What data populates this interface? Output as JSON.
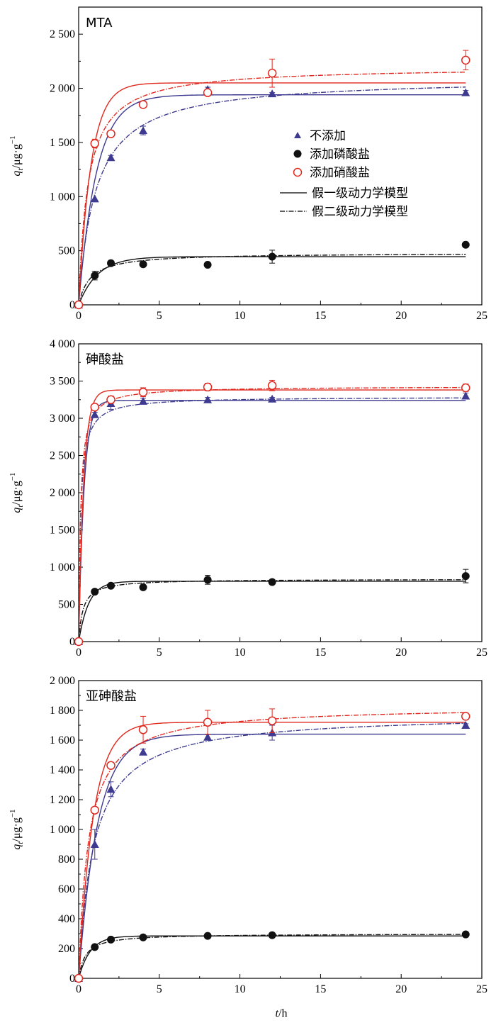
{
  "y_axis_label": "q",
  "y_axis_sub": "t",
  "y_axis_unit": "/μg·g",
  "y_axis_exp": "−1",
  "x_axis_label": "t",
  "x_axis_unit": "/h",
  "legend": {
    "none": "不添加",
    "phosphate": "添加磷酸盐",
    "nitrate": "添加硝酸盐",
    "pfo": "假一级动力学模型",
    "pso": "假二级动力学模型"
  },
  "colors": {
    "none": "#3d3a8f",
    "phosphate": "#111111",
    "nitrate": "#e0281e"
  },
  "chart_data": [
    {
      "type": "scatter",
      "panel_title": "MTA",
      "xlim": [
        0,
        25
      ],
      "ylim": [
        0,
        2750
      ],
      "xticks": [
        0,
        5,
        10,
        15,
        20,
        25
      ],
      "yticks": [
        0,
        500,
        1000,
        1500,
        2000,
        2500
      ],
      "ytick_labels": [
        "0",
        "500",
        "1 000",
        "1 500",
        "2 000",
        "2 500"
      ],
      "series": [
        {
          "name": "不添加",
          "key": "none",
          "marker": "triangle",
          "x": [
            0,
            1,
            2,
            4,
            8,
            12,
            24
          ],
          "y": [
            0,
            980,
            1360,
            1610,
            1990,
            1950,
            1960
          ],
          "err": [
            0,
            0,
            20,
            40,
            20,
            10,
            20
          ],
          "pfo": {
            "qe": 1940,
            "k": 0.9
          },
          "pso": {
            "qe": 2100,
            "k": 0.00045
          }
        },
        {
          "name": "添加磷酸盐",
          "key": "phosphate",
          "marker": "filled-circle",
          "x": [
            0,
            1,
            2,
            4,
            8,
            12,
            24
          ],
          "y": [
            0,
            270,
            385,
            375,
            370,
            445,
            555
          ],
          "err": [
            0,
            40,
            10,
            10,
            0,
            60,
            10
          ],
          "pfo": {
            "qe": 445,
            "k": 0.85
          },
          "pso": {
            "qe": 480,
            "k": 0.003
          }
        },
        {
          "name": "添加硝酸盐",
          "key": "nitrate",
          "marker": "open-circle",
          "x": [
            0,
            1,
            2,
            4,
            8,
            12,
            24
          ],
          "y": [
            0,
            1490,
            1580,
            1850,
            1960,
            2140,
            2260
          ],
          "err": [
            0,
            40,
            10,
            10,
            20,
            130,
            90
          ],
          "pfo": {
            "qe": 2050,
            "k": 1.3
          },
          "pso": {
            "qe": 2200,
            "k": 0.0008
          }
        }
      ]
    },
    {
      "type": "scatter",
      "panel_title": "砷酸盐",
      "xlim": [
        0,
        25
      ],
      "ylim": [
        0,
        4000
      ],
      "xticks": [
        0,
        5,
        10,
        15,
        20,
        25
      ],
      "yticks": [
        0,
        500,
        1000,
        1500,
        2000,
        2500,
        3000,
        3500,
        4000
      ],
      "ytick_labels": [
        "0",
        "500",
        "1 000",
        "1 500",
        "2 000",
        "2 500",
        "3 000",
        "3 500",
        "4 000"
      ],
      "series": [
        {
          "name": "不添加",
          "key": "none",
          "marker": "triangle",
          "x": [
            0,
            1,
            2,
            4,
            8,
            12,
            24
          ],
          "y": [
            0,
            3050,
            3200,
            3230,
            3250,
            3260,
            3300
          ],
          "err": [
            0,
            30,
            80,
            40,
            30,
            20,
            40
          ],
          "pfo": {
            "qe": 3240,
            "k": 3.0
          },
          "pso": {
            "qe": 3290,
            "k": 0.0025
          }
        },
        {
          "name": "添加磷酸盐",
          "key": "phosphate",
          "marker": "filled-circle",
          "x": [
            0,
            1,
            2,
            4,
            8,
            12,
            24
          ],
          "y": [
            0,
            670,
            750,
            730,
            830,
            800,
            880
          ],
          "err": [
            0,
            20,
            30,
            30,
            60,
            30,
            90
          ],
          "pfo": {
            "qe": 810,
            "k": 1.6
          },
          "pso": {
            "qe": 840,
            "k": 0.0045
          }
        },
        {
          "name": "添加硝酸盐",
          "key": "nitrate",
          "marker": "open-circle",
          "x": [
            0,
            1,
            2,
            4,
            8,
            12,
            24
          ],
          "y": [
            0,
            3150,
            3250,
            3350,
            3420,
            3440,
            3410
          ],
          "err": [
            0,
            20,
            50,
            60,
            50,
            70,
            50
          ],
          "pfo": {
            "qe": 3380,
            "k": 3.2
          },
          "pso": {
            "qe": 3430,
            "k": 0.0025
          }
        }
      ]
    },
    {
      "type": "scatter",
      "panel_title": "亚砷酸盐",
      "xlim": [
        0,
        25
      ],
      "ylim": [
        0,
        2000
      ],
      "xticks": [
        0,
        5,
        10,
        15,
        20,
        25
      ],
      "yticks": [
        0,
        200,
        400,
        600,
        800,
        1000,
        1200,
        1400,
        1600,
        1800,
        2000
      ],
      "ytick_labels": [
        "0",
        "200",
        "400",
        "600",
        "800",
        "1 000",
        "1 200",
        "1 400",
        "1 600",
        "1 800",
        "2 000"
      ],
      "series": [
        {
          "name": "不添加",
          "key": "none",
          "marker": "triangle",
          "x": [
            0,
            1,
            2,
            4,
            8,
            12,
            24
          ],
          "y": [
            0,
            900,
            1270,
            1520,
            1620,
            1650,
            1700
          ],
          "err": [
            0,
            100,
            50,
            20,
            20,
            50,
            10
          ],
          "pfo": {
            "qe": 1640,
            "k": 0.85
          },
          "pso": {
            "qe": 1780,
            "k": 0.0006
          }
        },
        {
          "name": "添加磷酸盐",
          "key": "phosphate",
          "marker": "filled-circle",
          "x": [
            0,
            1,
            2,
            4,
            8,
            12,
            24
          ],
          "y": [
            0,
            210,
            260,
            275,
            285,
            290,
            295
          ],
          "err": [
            0,
            10,
            10,
            10,
            10,
            10,
            10
          ],
          "pfo": {
            "qe": 285,
            "k": 1.4
          },
          "pso": {
            "qe": 300,
            "k": 0.008
          }
        },
        {
          "name": "添加硝酸盐",
          "key": "nitrate",
          "marker": "open-circle",
          "x": [
            0,
            1,
            2,
            4,
            8,
            12,
            24
          ],
          "y": [
            0,
            1130,
            1430,
            1670,
            1720,
            1730,
            1760
          ],
          "err": [
            0,
            20,
            20,
            90,
            80,
            80,
            20
          ],
          "pfo": {
            "qe": 1720,
            "k": 1.1
          },
          "pso": {
            "qe": 1830,
            "k": 0.0009
          }
        }
      ]
    }
  ]
}
